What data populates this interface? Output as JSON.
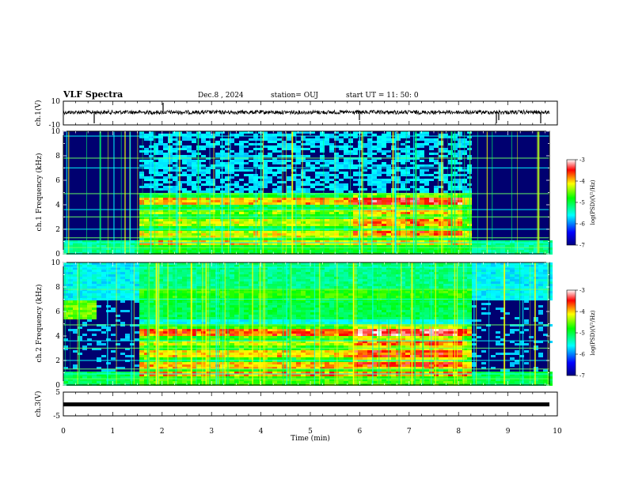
{
  "header": {
    "title": "VLF Spectra",
    "date": "Dec.8 , 2024",
    "station": "station= OUJ",
    "start_ut": "start UT = 11: 50: 0"
  },
  "chart_data": [
    {
      "type": "line",
      "panel": "ch1-waveform",
      "ylabel": "ch.1(V)",
      "ylim": [
        -10,
        10
      ],
      "yticks": [
        "10",
        "-10"
      ]
    },
    {
      "type": "heatmap",
      "panel": "ch1-spectrogram",
      "ylabel": "ch.1 Frequency (kHz)",
      "ylim": [
        0,
        10
      ],
      "yticks": [
        "0",
        "2",
        "4",
        "6",
        "8",
        "10"
      ],
      "colorbar": {
        "label": "log(PSD)(V²/Hz)",
        "range": [
          -7,
          -3
        ],
        "ticks": [
          "-3",
          "-4",
          "-5",
          "-6",
          "-7"
        ]
      }
    },
    {
      "type": "heatmap",
      "panel": "ch2-spectrogram",
      "ylabel": "ch.2 Frequency (kHz)",
      "ylim": [
        0,
        10
      ],
      "yticks": [
        "0",
        "2",
        "4",
        "6",
        "8",
        "10"
      ],
      "colorbar": {
        "label": "log(PSD)(V²/Hz)",
        "range": [
          -7,
          -3
        ],
        "ticks": [
          "-3",
          "-4",
          "-5",
          "-6",
          "-7"
        ]
      }
    },
    {
      "type": "line",
      "panel": "ch3-waveform",
      "ylabel": "ch.3(V)",
      "ylim": [
        -5,
        5
      ],
      "yticks": [
        "5",
        "-5"
      ]
    }
  ],
  "xaxis": {
    "label": "Time (min)",
    "range": [
      0,
      10
    ],
    "ticks": [
      "0",
      "1",
      "2",
      "3",
      "4",
      "5",
      "6",
      "7",
      "8",
      "9",
      "10"
    ]
  }
}
